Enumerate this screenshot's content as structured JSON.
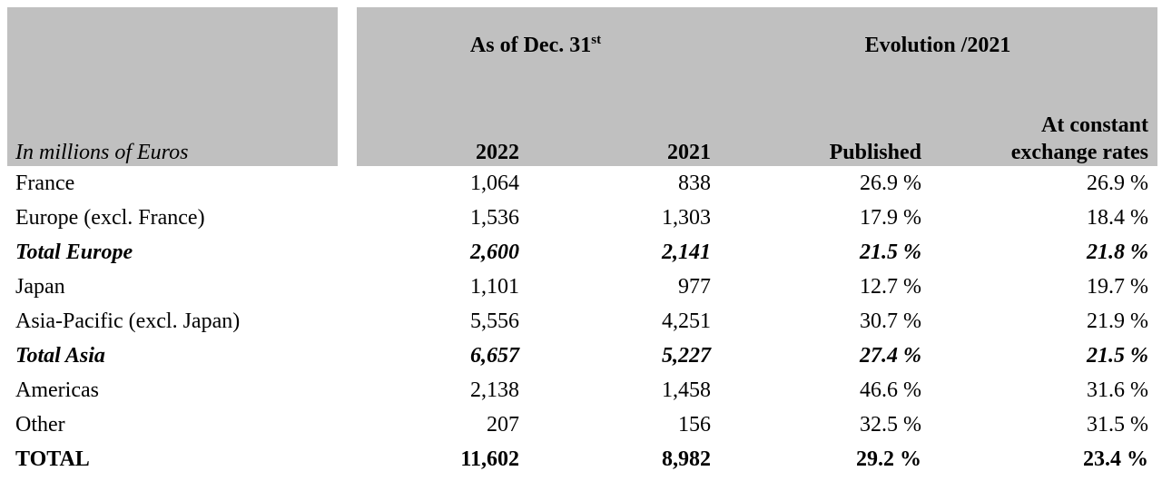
{
  "table": {
    "header": {
      "group1": {
        "text": "As of Dec. 31",
        "sup": "st"
      },
      "group2": "Evolution /2021",
      "unit": "In millions of Euros",
      "columns": [
        "2022",
        "2021",
        "Published",
        [
          "At constant",
          "exchange rates"
        ]
      ]
    },
    "rows": [
      {
        "label": "France",
        "cells": [
          "1,064",
          "838",
          "26.9 %",
          "26.9 %"
        ],
        "style": "normal"
      },
      {
        "label": "Europe (excl. France)",
        "cells": [
          "1,536",
          "1,303",
          "17.9 %",
          "18.4 %"
        ],
        "style": "normal"
      },
      {
        "label": "Total Europe",
        "cells": [
          "2,600",
          "2,141",
          "21.5 %",
          "21.8 %"
        ],
        "style": "bold-italic"
      },
      {
        "label": "Japan",
        "cells": [
          "1,101",
          "977",
          "12.7 %",
          "19.7 %"
        ],
        "style": "normal"
      },
      {
        "label": "Asia-Pacific (excl. Japan)",
        "cells": [
          "5,556",
          "4,251",
          "30.7 %",
          "21.9 %"
        ],
        "style": "normal"
      },
      {
        "label": "Total Asia",
        "cells": [
          "6,657",
          "5,227",
          "27.4 %",
          "21.5 %"
        ],
        "style": "bold-italic"
      },
      {
        "label": "Americas",
        "cells": [
          "2,138",
          "1,458",
          "46.6 %",
          "31.6 %"
        ],
        "style": "normal"
      },
      {
        "label": "Other",
        "cells": [
          "207",
          "156",
          "32.5 %",
          "31.5 %"
        ],
        "style": "normal"
      },
      {
        "label": "TOTAL",
        "cells": [
          "11,602",
          "8,982",
          "29.2 %",
          "23.4 %"
        ],
        "style": "bold"
      }
    ]
  }
}
